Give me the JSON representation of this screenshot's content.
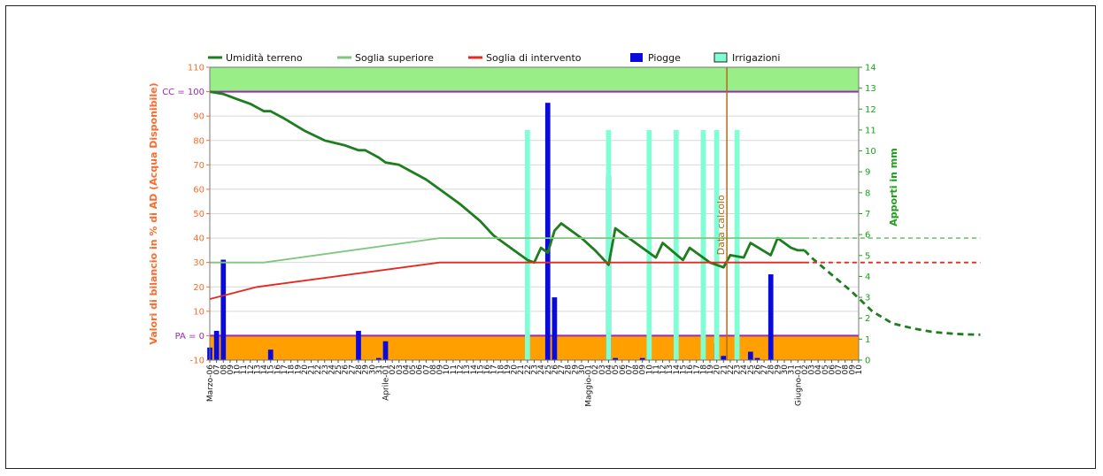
{
  "chart_data": {
    "type": "line",
    "title": "",
    "ylabel": "Valori di bilancio in % di AD (Acqua Disponibile)",
    "y2label": "Apporti in mm",
    "xlabel": "",
    "ylim": [
      -10,
      110
    ],
    "y2lim": [
      0,
      14
    ],
    "yticks": [
      -10,
      0,
      10,
      20,
      30,
      40,
      50,
      60,
      70,
      80,
      90,
      100,
      110
    ],
    "y2ticks": [
      0,
      1,
      2,
      3,
      4,
      5,
      6,
      7,
      8,
      9,
      10,
      11,
      12,
      13,
      14
    ],
    "ytick_labels": {
      "100": "CC = 100",
      "0": "PA = 0"
    },
    "grid": true,
    "legend_position": "top",
    "colors": {
      "soil": "#1e7d1e",
      "upper": "#7fc77f",
      "intervention": "#e8281e",
      "rain": "#0a0adc",
      "irrigation": "#7fffd4",
      "axis_left": "#ff6a2a",
      "axis_right": "#1aa31a",
      "cc_pa": "#9a2ab0",
      "top_band": "#99ee88",
      "bottom_band": "#ff9f00",
      "calc_line": "#b36a1a"
    },
    "day_count": 97,
    "x_labels": [
      "Marzo-06",
      "07",
      "08",
      "09",
      "10",
      "11",
      "12",
      "13",
      "14",
      "15",
      "16",
      "17",
      "18",
      "19",
      "20",
      "21",
      "22",
      "23",
      "24",
      "25",
      "26",
      "27",
      "28",
      "29",
      "30",
      "31",
      "Aprile-01",
      "02",
      "03",
      "04",
      "05",
      "06",
      "07",
      "08",
      "09",
      "10",
      "11",
      "12",
      "13",
      "14",
      "15",
      "16",
      "17",
      "18",
      "19",
      "20",
      "21",
      "22",
      "23",
      "24",
      "25",
      "26",
      "27",
      "28",
      "29",
      "30",
      "Maggio-01",
      "02",
      "03",
      "04",
      "05",
      "06",
      "07",
      "08",
      "09",
      "10",
      "11",
      "12",
      "13",
      "14",
      "15",
      "16",
      "17",
      "18",
      "19",
      "20",
      "21",
      "22",
      "23",
      "24",
      "25",
      "26",
      "27",
      "28",
      "29",
      "30",
      "31",
      "Giugno-01",
      "02",
      "03",
      "04",
      "05",
      "06",
      "07",
      "08",
      "09",
      "10"
    ],
    "legend": [
      {
        "name": "Umidità terreno",
        "kind": "line",
        "color": "#1e7d1e"
      },
      {
        "name": "Soglia superiore",
        "kind": "line",
        "color": "#7fc77f"
      },
      {
        "name": "Soglia di intervento",
        "kind": "line",
        "color": "#e8281e"
      },
      {
        "name": "Piogge",
        "kind": "box",
        "color": "#0a0adc"
      },
      {
        "name": "Irrigazioni",
        "kind": "box",
        "color": "#7fffd4"
      }
    ],
    "calc_annotation": {
      "label": "Data calcolo",
      "x": 76.5
    },
    "series": [
      {
        "name": "Umidità terreno",
        "axis": "left",
        "style": "solid",
        "points": [
          [
            0,
            100
          ],
          [
            2,
            99
          ],
          [
            4,
            97
          ],
          [
            6,
            95
          ],
          [
            8,
            92
          ],
          [
            9,
            92
          ],
          [
            11,
            89
          ],
          [
            14,
            84
          ],
          [
            17,
            80
          ],
          [
            20,
            78
          ],
          [
            22,
            76
          ],
          [
            23,
            76
          ],
          [
            25,
            73
          ],
          [
            26,
            71
          ],
          [
            28,
            70
          ],
          [
            30,
            67
          ],
          [
            32,
            64
          ],
          [
            35,
            58
          ],
          [
            37,
            54
          ],
          [
            40,
            47
          ],
          [
            42,
            41
          ],
          [
            45,
            35
          ],
          [
            47,
            31
          ],
          [
            48,
            30
          ],
          [
            49,
            36
          ],
          [
            50,
            34
          ],
          [
            51,
            43
          ],
          [
            52,
            46
          ],
          [
            55,
            40
          ],
          [
            57,
            35
          ],
          [
            58,
            32
          ],
          [
            59,
            29
          ],
          [
            60,
            44
          ],
          [
            62,
            40
          ],
          [
            66,
            32
          ],
          [
            67,
            38
          ],
          [
            70,
            31
          ],
          [
            71,
            36
          ],
          [
            74,
            30
          ],
          [
            76,
            28
          ],
          [
            77,
            33
          ],
          [
            79,
            32
          ],
          [
            80,
            38
          ],
          [
            83,
            33
          ],
          [
            84,
            40
          ],
          [
            86,
            36
          ],
          [
            87,
            35
          ],
          [
            88,
            35
          ]
        ]
      },
      {
        "name": "Umidità terreno",
        "axis": "left",
        "style": "dashed",
        "points": [
          [
            88,
            35
          ],
          [
            89,
            32
          ],
          [
            92,
            25
          ],
          [
            95,
            18
          ],
          [
            98,
            10
          ],
          [
            101,
            5
          ],
          [
            104,
            3
          ],
          [
            107,
            1.5
          ],
          [
            110,
            0.8
          ],
          [
            112,
            0.5
          ],
          [
            114,
            0.4
          ]
        ]
      },
      {
        "name": "Soglia superiore",
        "axis": "left",
        "style": "solid",
        "points": [
          [
            0,
            30
          ],
          [
            8,
            30
          ],
          [
            34,
            40
          ],
          [
            88,
            40
          ]
        ]
      },
      {
        "name": "Soglia superiore",
        "axis": "left",
        "style": "dashed",
        "points": [
          [
            88,
            40
          ],
          [
            114,
            40
          ]
        ]
      },
      {
        "name": "Soglia di intervento",
        "axis": "left",
        "style": "solid",
        "points": [
          [
            0,
            15
          ],
          [
            7,
            20
          ],
          [
            34,
            30
          ],
          [
            88,
            30
          ]
        ]
      },
      {
        "name": "Soglia di intervento",
        "axis": "left",
        "style": "dashed",
        "points": [
          [
            88,
            30
          ],
          [
            114,
            30
          ]
        ]
      },
      {
        "name": "Piogge",
        "axis": "right",
        "type": "bar",
        "points": [
          [
            0,
            0.6
          ],
          [
            1,
            1.4
          ],
          [
            2,
            4.8
          ],
          [
            9,
            0.5
          ],
          [
            22,
            1.4
          ],
          [
            25,
            0.1
          ],
          [
            26,
            0.9
          ],
          [
            46,
            0
          ],
          [
            47,
            0
          ],
          [
            48,
            0
          ],
          [
            49,
            0
          ],
          [
            50,
            12.3
          ],
          [
            51,
            3
          ],
          [
            59,
            8.8
          ],
          [
            60,
            0.1
          ],
          [
            64,
            0.1
          ],
          [
            75,
            0.8
          ],
          [
            76,
            0.2
          ],
          [
            80,
            0.4
          ],
          [
            81,
            0.1
          ],
          [
            83,
            4.1
          ]
        ]
      },
      {
        "name": "Irrigazioni",
        "axis": "right",
        "type": "bar",
        "points": [
          [
            47,
            11
          ],
          [
            59,
            11
          ],
          [
            65,
            11
          ],
          [
            69,
            11
          ],
          [
            73,
            11
          ],
          [
            75,
            11
          ],
          [
            78,
            11
          ]
        ]
      }
    ]
  }
}
